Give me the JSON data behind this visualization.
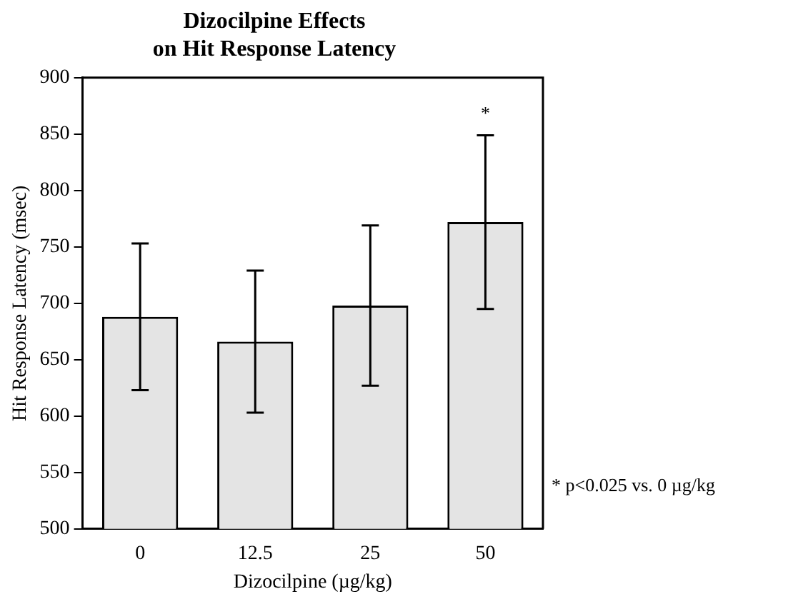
{
  "chart_data": {
    "type": "bar",
    "title": "Dizocilpine Effects\non Hit Response Latency",
    "xlabel": "Dizocilpine (µg/kg)",
    "ylabel": "Hit Response Latency (msec)",
    "categories": [
      "0",
      "12.5",
      "25",
      "50"
    ],
    "values": [
      688,
      666,
      698,
      772
    ],
    "errors": [
      65,
      63,
      71,
      77
    ],
    "color": "#e4e4e4",
    "ylim": [
      500,
      900
    ],
    "yticks": [
      500,
      550,
      600,
      650,
      700,
      750,
      800,
      850,
      900
    ],
    "grid": false,
    "legend": false,
    "annotations": [
      "*",
      "* p<0.025 vs. 0 µg/kg"
    ]
  }
}
